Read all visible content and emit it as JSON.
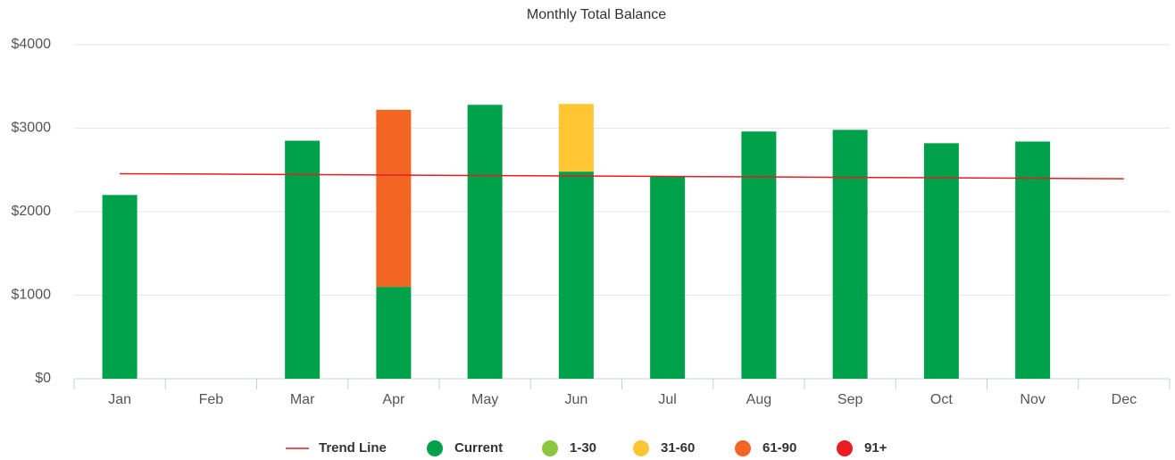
{
  "chart_data": {
    "type": "bar",
    "stacked": true,
    "title": "Monthly Total Balance",
    "categories": [
      "Jan",
      "Feb",
      "Mar",
      "Apr",
      "May",
      "Jun",
      "Jul",
      "Aug",
      "Sep",
      "Oct",
      "Nov",
      "Dec"
    ],
    "series": [
      {
        "name": "Trend Line",
        "type": "line",
        "color": "#e31e24",
        "values": [
          2455,
          2450,
          2444,
          2439,
          2433,
          2428,
          2422,
          2417,
          2411,
          2406,
          2400,
          2395
        ]
      },
      {
        "name": "Current",
        "color": "#00a14b",
        "values": [
          2200,
          null,
          2850,
          1100,
          3280,
          2480,
          2420,
          2960,
          2980,
          2820,
          2840,
          null
        ]
      },
      {
        "name": "1-30",
        "color": "#8cc63f",
        "values": [
          null,
          null,
          null,
          null,
          null,
          null,
          null,
          null,
          null,
          null,
          null,
          null
        ]
      },
      {
        "name": "31-60",
        "color": "#ffc533",
        "values": [
          null,
          null,
          null,
          null,
          null,
          810,
          null,
          null,
          null,
          null,
          null,
          null
        ]
      },
      {
        "name": "61-90",
        "color": "#f26522",
        "values": [
          null,
          null,
          null,
          2120,
          null,
          null,
          null,
          null,
          null,
          null,
          null,
          null
        ]
      },
      {
        "name": "91+",
        "color": "#ed1c24",
        "values": [
          null,
          null,
          null,
          null,
          null,
          null,
          null,
          null,
          null,
          null,
          null,
          null
        ]
      }
    ],
    "ylim": [
      0,
      4000
    ],
    "yticks": [
      {
        "value": 0,
        "label": "$0"
      },
      {
        "value": 1000,
        "label": "$1000"
      },
      {
        "value": 2000,
        "label": "$2000"
      },
      {
        "value": 3000,
        "label": "$3000"
      },
      {
        "value": 4000,
        "label": "$4000"
      }
    ],
    "grid": true,
    "legend": "bottom"
  }
}
